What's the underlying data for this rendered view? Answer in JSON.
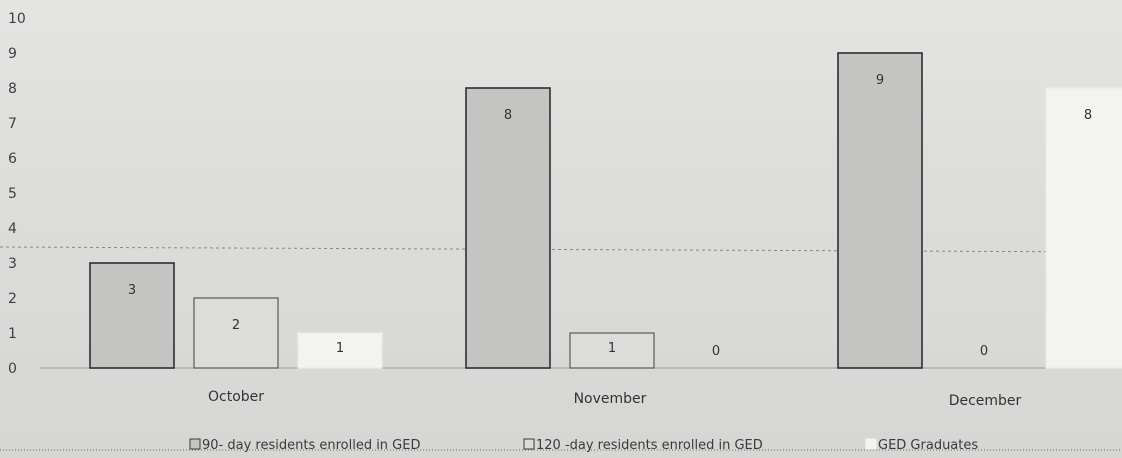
{
  "chart_data": {
    "type": "bar",
    "categories": [
      "October",
      "November",
      "December"
    ],
    "series": [
      {
        "name": "90- day residents enrolled in GED",
        "values": [
          3,
          8,
          9
        ],
        "color": "#c4c4c2"
      },
      {
        "name": "120 -day residents enrolled in GED",
        "values": [
          2,
          1,
          0
        ],
        "color": "#dcdcda"
      },
      {
        "name": "GED Graduates",
        "values": [
          1,
          0,
          8
        ],
        "color": "#f3f3f1"
      }
    ],
    "yticks": [
      "0",
      "1",
      "2",
      "3",
      "4",
      "5",
      "6",
      "7",
      "8",
      "9",
      "10"
    ],
    "ylim": [
      0,
      10
    ],
    "grid": false,
    "legend_position": "bottom",
    "title": "",
    "xlabel": "",
    "ylabel": ""
  }
}
